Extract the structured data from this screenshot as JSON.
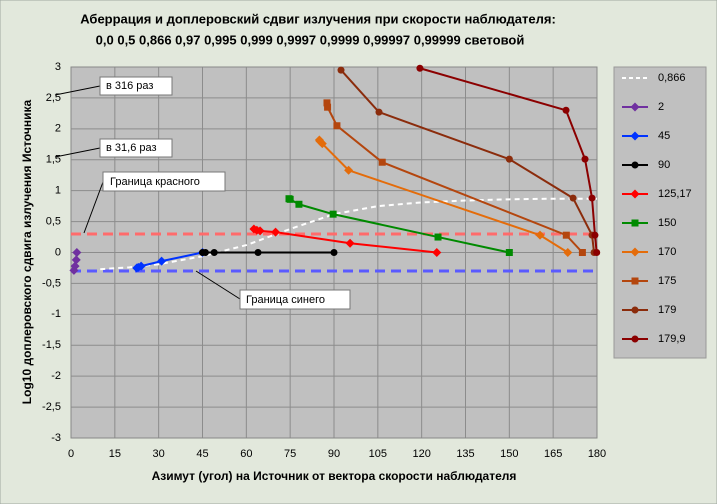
{
  "chart_data": {
    "type": "line",
    "title": "Аберрация  и доплеровский сдвиг  излучения  при скорости наблюдателя:",
    "subtitle": "0,0 0,5 0,866 0,97 0,995 0,999 0,9997 0,9999 0,99997 0,99999 световой",
    "x_label": "Азимут (угол) на Источник от вектора скорости наблюдателя",
    "y_label": "Log10  доплеровского  сдвига  излучения  Источника",
    "xlim": [
      0,
      180
    ],
    "xticks": [
      0,
      15,
      30,
      45,
      60,
      75,
      90,
      105,
      120,
      135,
      150,
      165,
      180
    ],
    "ylim": [
      -3,
      3
    ],
    "yticks": [
      -3,
      {
        "value": -2.5,
        "label": "-2,5"
      },
      -2,
      {
        "value": -1.5,
        "label": "-1,5"
      },
      -1,
      {
        "value": -0.5,
        "label": "-0,5"
      },
      0,
      {
        "value": 0.5,
        "label": "0,5"
      },
      1,
      {
        "value": 1.5,
        "label": "1,5"
      },
      2,
      {
        "value": 2.5,
        "label": "2,5"
      },
      3
    ],
    "grid": true,
    "legend": "right",
    "reference_lines": [
      {
        "value": 0.3,
        "color": "#ff6b6b"
      },
      {
        "value": -0.3,
        "color": "#5a5aff"
      }
    ],
    "annotations": [
      "в 316 раз",
      "в 31,6 раз",
      "Граница красного",
      "Граница синего"
    ],
    "series": [
      {
        "name": "0,866",
        "color": "#ffffff",
        "marker": "none",
        "dash": true,
        "x": [
          10,
          20,
          30,
          45,
          60,
          75,
          90,
          105,
          120,
          135,
          150,
          165,
          180
        ],
        "values": [
          -0.27,
          -0.24,
          -0.19,
          -0.06,
          0.12,
          0.38,
          0.62,
          0.75,
          0.81,
          0.84,
          0.86,
          0.87,
          0.87
        ]
      },
      {
        "name": "2",
        "color": "#7030a0",
        "marker": "diamond",
        "x": [
          2,
          1.8,
          1.4,
          1
        ],
        "values": [
          0,
          -0.12,
          -0.22,
          -0.29
        ]
      },
      {
        "name": "45",
        "color": "#0033ff",
        "marker": "diamond",
        "x": [
          45,
          31,
          24,
          23,
          22.5
        ],
        "values": [
          0,
          -0.14,
          -0.22,
          -0.24,
          -0.25
        ]
      },
      {
        "name": "90",
        "color": "#000000",
        "marker": "circle",
        "x": [
          90,
          64,
          49,
          46,
          45
        ],
        "values": [
          0,
          0,
          0,
          0,
          0
        ]
      },
      {
        "name": "125,17",
        "color": "#ff0000",
        "marker": "diamond",
        "x": [
          125.17,
          95.5,
          70,
          64.7,
          63.6,
          62.6
        ],
        "values": [
          0,
          0.15,
          0.33,
          0.35,
          0.36,
          0.38
        ]
      },
      {
        "name": "150",
        "color": "#008a00",
        "marker": "square",
        "x": [
          150,
          125.6,
          89.7,
          78,
          75,
          74.6
        ],
        "values": [
          0,
          0.25,
          0.62,
          0.78,
          0.86,
          0.87
        ]
      },
      {
        "name": "170",
        "color": "#e46c0a",
        "marker": "diamond",
        "x": [
          170,
          160.5,
          95,
          86,
          85.2,
          85
        ],
        "values": [
          0,
          0.28,
          1.33,
          1.76,
          1.8,
          1.82
        ]
      },
      {
        "name": "175",
        "color": "#b4460e",
        "marker": "square",
        "x": [
          175,
          169.5,
          106.5,
          91,
          87.8,
          87.6
        ],
        "values": [
          0,
          0.28,
          1.46,
          2.05,
          2.35,
          2.42
        ]
      },
      {
        "name": "179",
        "color": "#8b2c0c",
        "marker": "circle",
        "x": [
          179,
          178.3,
          171.8,
          150,
          105.4,
          92.4
        ],
        "values": [
          0,
          0.28,
          0.88,
          1.51,
          2.27,
          2.95
        ]
      },
      {
        "name": "179,9",
        "color": "#8b0000",
        "marker": "circle",
        "x": [
          179.9,
          179.3,
          178.3,
          175.9,
          169.4,
          119.4
        ],
        "values": [
          0,
          0.28,
          0.88,
          1.51,
          2.3,
          2.98
        ]
      }
    ]
  }
}
